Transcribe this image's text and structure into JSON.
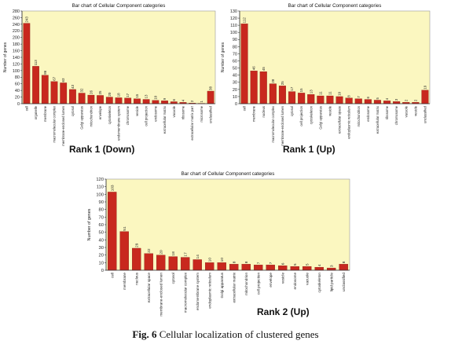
{
  "colors": {
    "plot_bg": "#fbf7c0",
    "bar": "#c8281e",
    "axis": "#333333",
    "grid": "#e2dda0"
  },
  "figure": {
    "caption_prefix": "Fig. 6",
    "caption_text": "Cellular localization of clustered genes"
  },
  "chart_data": [
    {
      "type": "bar",
      "title": "Bar chart of Cellular Component categories",
      "subtitle": "Rank 1 (Down)",
      "xlabel": "",
      "ylabel": "Number of genes",
      "ylim": [
        0,
        280
      ],
      "yticks": [
        0,
        20,
        40,
        60,
        80,
        100,
        120,
        140,
        160,
        180,
        200,
        220,
        240,
        260,
        280
      ],
      "grid": false,
      "categories": [
        "cell",
        "organelle",
        "membrane",
        "macromolecular complex",
        "membrane-enclosed lumen",
        "cytosol",
        "Golgi apparatus",
        "mitochondrion",
        "envelope",
        "cytoskeleton",
        "endomembrane system",
        "chromosome",
        "vesicle",
        "cell projection",
        "endosome",
        "extracellular matrix",
        "vacuole",
        "ribosome",
        "extracellular matrix part",
        "microsome",
        "unclassified"
      ],
      "values": [
        243,
        113,
        86,
        67,
        63,
        43,
        32,
        26,
        25,
        20,
        18,
        17,
        15,
        13,
        10,
        9,
        6,
        4,
        2,
        1,
        38
      ]
    },
    {
      "type": "bar",
      "title": "Bar chart of Cellular Component categories",
      "subtitle": "Rank 1 (Up)",
      "xlabel": "",
      "ylabel": "Number of genes",
      "ylim": [
        0,
        130
      ],
      "yticks": [
        0,
        10,
        20,
        30,
        40,
        50,
        60,
        70,
        80,
        90,
        100,
        110,
        120,
        130
      ],
      "grid": false,
      "categories": [
        "cell",
        "membrane",
        "nucleus",
        "macromolecular complex",
        "membrane-enclosed lumen",
        "cytosol",
        "cell projection",
        "cytoskeleton",
        "Golgi apparatus",
        "vesicle",
        "extracellular space",
        "endoplasmic reticulum",
        "mitochondrion",
        "endosome",
        "extracellular matrix",
        "ribosome",
        "chromosome",
        "vacuole",
        "vesicle",
        "unclassified"
      ],
      "values": [
        112,
        46,
        45,
        28,
        25,
        17,
        15,
        13,
        11,
        11,
        10,
        8,
        7,
        6,
        5,
        4,
        3,
        2,
        2,
        19
      ]
    },
    {
      "type": "bar",
      "title": "Bar chart of Cellular Component categories",
      "subtitle": "Rank 2 (Up)",
      "xlabel": "",
      "ylabel": "Number of genes",
      "ylim": [
        0,
        120
      ],
      "yticks": [
        0,
        10,
        20,
        30,
        40,
        50,
        60,
        70,
        80,
        90,
        100,
        110,
        120
      ],
      "grid": false,
      "categories": [
        "cell",
        "membrane",
        "nucleus",
        "extracellular space",
        "membrane-enclosed lumen",
        "cytosol",
        "macromolecular complex",
        "endomembrane system",
        "endoplasmic reticulum",
        "Golgi apparatus",
        "extracellular matrix",
        "mitochondrion",
        "cell projection",
        "envelope",
        "vesicle",
        "endosome",
        "vacuole",
        "cytoskeleton",
        "lipid particle",
        "unclassified"
      ],
      "values": [
        103,
        51,
        29,
        22,
        20,
        18,
        17,
        14,
        10,
        10,
        8,
        8,
        7,
        7,
        6,
        5,
        5,
        4,
        3,
        8
      ]
    }
  ]
}
